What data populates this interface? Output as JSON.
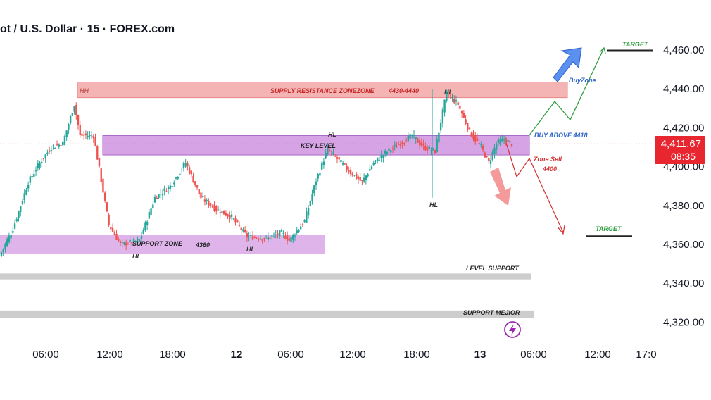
{
  "header": {
    "title": "ot / U.S. Dollar · 15 · FOREX.com"
  },
  "price_tag": {
    "price": "4,411.67",
    "countdown": "08:35"
  },
  "colors": {
    "up": "#26a69a",
    "down": "#ef5350",
    "supply_zone": "#f4a7a7",
    "key_zone": "#cf93e0",
    "support_zone": "#d9a7e6",
    "gray_bar": "#c4c4c4",
    "target_green": "#2e9e3f",
    "buy_blue": "#2962c9",
    "sell_red": "#d32f2f"
  },
  "icons": {
    "bolt": "lightning-bolt-icon"
  },
  "chart_data": {
    "type": "candlestick",
    "title": "",
    "ylim": [
      4310,
      4470
    ],
    "y_ticks": [
      4320,
      4340,
      4360,
      4380,
      4400,
      4420,
      4440,
      4460
    ],
    "y_tick_labels": [
      "4,320.00",
      "4,340.00",
      "4,360.00",
      "4,380.00",
      "4,400.00",
      "4,420.00",
      "4,440.00",
      "4,460.00"
    ],
    "x_tick_labels": [
      "06:00",
      "12:00",
      "18:00",
      "12",
      "06:00",
      "12:00",
      "18:00",
      "13",
      "06:00",
      "12:00",
      "17:0"
    ],
    "x_tick_bold": [
      "12",
      "13"
    ],
    "last_price": 4411.67,
    "anchors": [
      [
        0,
        4356
      ],
      [
        6,
        4368
      ],
      [
        14,
        4392
      ],
      [
        20,
        4402
      ],
      [
        26,
        4410
      ],
      [
        32,
        4412
      ],
      [
        38,
        4432
      ],
      [
        41,
        4416
      ],
      [
        48,
        4416
      ],
      [
        56,
        4370
      ],
      [
        62,
        4360
      ],
      [
        72,
        4362
      ],
      [
        80,
        4384
      ],
      [
        88,
        4390
      ],
      [
        96,
        4402
      ],
      [
        104,
        4384
      ],
      [
        112,
        4378
      ],
      [
        120,
        4374
      ],
      [
        128,
        4364
      ],
      [
        138,
        4363
      ],
      [
        146,
        4366
      ],
      [
        150,
        4362
      ],
      [
        158,
        4372
      ],
      [
        164,
        4393
      ],
      [
        170,
        4409
      ],
      [
        176,
        4403
      ],
      [
        182,
        4397
      ],
      [
        188,
        4392
      ],
      [
        194,
        4402
      ],
      [
        200,
        4407
      ],
      [
        208,
        4412
      ],
      [
        214,
        4416
      ],
      [
        220,
        4410
      ],
      [
        226,
        4408
      ],
      [
        232,
        4438
      ],
      [
        238,
        4432
      ],
      [
        244,
        4418
      ],
      [
        250,
        4410
      ],
      [
        254,
        4402
      ],
      [
        258,
        4412
      ],
      [
        262,
        4414
      ],
      [
        266,
        4411.67
      ]
    ],
    "zones": [
      {
        "name": "supply",
        "label": "SUPPLY RESISTANCE ZONEZONE",
        "sub": "4430-4440",
        "y1": 4435.5,
        "y2": 4443.5,
        "x_from": "06:00+",
        "tag_hh": "HH",
        "tag_hl": "HL"
      },
      {
        "name": "key",
        "label": "KEY LEVEL",
        "y1": 4406,
        "y2": 4416
      },
      {
        "name": "support",
        "label": "SUPPORT ZONE",
        "sub": "4360",
        "y1": 4355,
        "y2": 4365
      },
      {
        "name": "level-support",
        "label": "LEVEL SUPPORT",
        "y1": 4342,
        "y2": 4345
      },
      {
        "name": "support-major",
        "label": "SUPPORT MEJIOR",
        "y1": 4322,
        "y2": 4326
      }
    ],
    "annotations": {
      "hl_labels": [
        "HL",
        "HL",
        "HL",
        "HL",
        "HL"
      ],
      "buy_above": "BUY ABOVE 4418",
      "buyzone": "BuyZone",
      "zone_sell": "Zone Sell",
      "zone_sell_value": "4400",
      "target": "TARGET",
      "target_up": 4460,
      "target_down": 4365
    }
  }
}
